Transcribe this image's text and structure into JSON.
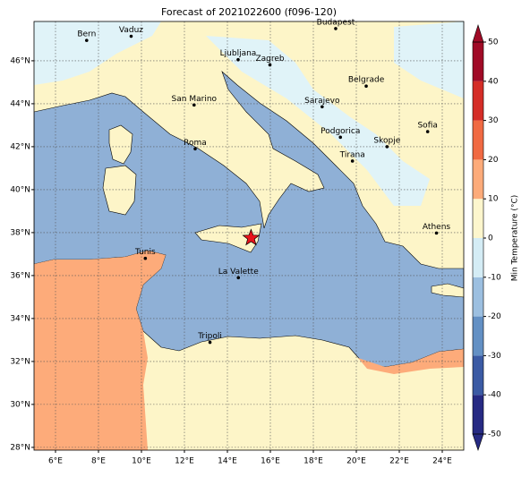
{
  "title": "Forecast of 2021022600 (f096-120)",
  "map": {
    "xlim": [
      5,
      25
    ],
    "ylim": [
      27.87,
      47.83
    ],
    "xticks": [
      {
        "value": 6,
        "label": "6°E"
      },
      {
        "value": 8,
        "label": "8°E"
      },
      {
        "value": 10,
        "label": "10°E"
      },
      {
        "value": 12,
        "label": "12°E"
      },
      {
        "value": 14,
        "label": "14°E"
      },
      {
        "value": 16,
        "label": "16°E"
      },
      {
        "value": 18,
        "label": "18°E"
      },
      {
        "value": 20,
        "label": "20°E"
      },
      {
        "value": 22,
        "label": "22°E"
      },
      {
        "value": 24,
        "label": "24°E"
      }
    ],
    "yticks": [
      {
        "value": 28,
        "label": "28°N"
      },
      {
        "value": 30,
        "label": "30°N"
      },
      {
        "value": 32,
        "label": "32°N"
      },
      {
        "value": 34,
        "label": "34°N"
      },
      {
        "value": 36,
        "label": "36°N"
      },
      {
        "value": 38,
        "label": "38°N"
      },
      {
        "value": 40,
        "label": "40°N"
      },
      {
        "value": 42,
        "label": "42°N"
      },
      {
        "value": 44,
        "label": "44°N"
      },
      {
        "value": 46,
        "label": "46°N"
      }
    ],
    "grid": true,
    "cities": [
      {
        "label": "Bern",
        "lon": 7.45,
        "lat": 46.95
      },
      {
        "label": "Vaduz",
        "lon": 9.52,
        "lat": 47.14
      },
      {
        "label": "Budapest",
        "lon": 19.04,
        "lat": 47.5
      },
      {
        "label": "Ljubljana",
        "lon": 14.5,
        "lat": 46.05
      },
      {
        "label": "Zagreb",
        "lon": 15.98,
        "lat": 45.81
      },
      {
        "label": "Belgrade",
        "lon": 20.46,
        "lat": 44.82
      },
      {
        "label": "Sarajevo",
        "lon": 18.41,
        "lat": 43.86
      },
      {
        "label": "San Marino",
        "lon": 12.45,
        "lat": 43.94
      },
      {
        "label": "Sofia",
        "lon": 23.32,
        "lat": 42.7
      },
      {
        "label": "Podgorica",
        "lon": 19.26,
        "lat": 42.44
      },
      {
        "label": "Skopje",
        "lon": 21.43,
        "lat": 42.0
      },
      {
        "label": "Roma",
        "lon": 12.5,
        "lat": 41.9
      },
      {
        "label": "Tirana",
        "lon": 19.82,
        "lat": 41.33
      },
      {
        "label": "Athens",
        "lon": 23.73,
        "lat": 37.98
      },
      {
        "label": "Tunis",
        "lon": 10.18,
        "lat": 36.8
      },
      {
        "label": "La Valette",
        "lon": 14.51,
        "lat": 35.9
      },
      {
        "label": "Tripoli",
        "lon": 13.19,
        "lat": 32.89
      }
    ],
    "marker": {
      "lon": 15.1,
      "lat": 37.75,
      "color": "#e8131b"
    }
  },
  "colorbar": {
    "label": "Min Temperature (°C)",
    "lim": [
      -50,
      50
    ],
    "ticks": [
      -50,
      -40,
      -30,
      -20,
      -10,
      0,
      10,
      20,
      30,
      40,
      50
    ],
    "colors": [
      "#262a83",
      "#3b5aa4",
      "#6390c4",
      "#9cbfe0",
      "#d4ecf5",
      "#fdf6cd",
      "#fdab7a",
      "#f06a43",
      "#d42d27",
      "#a00a26"
    ]
  }
}
